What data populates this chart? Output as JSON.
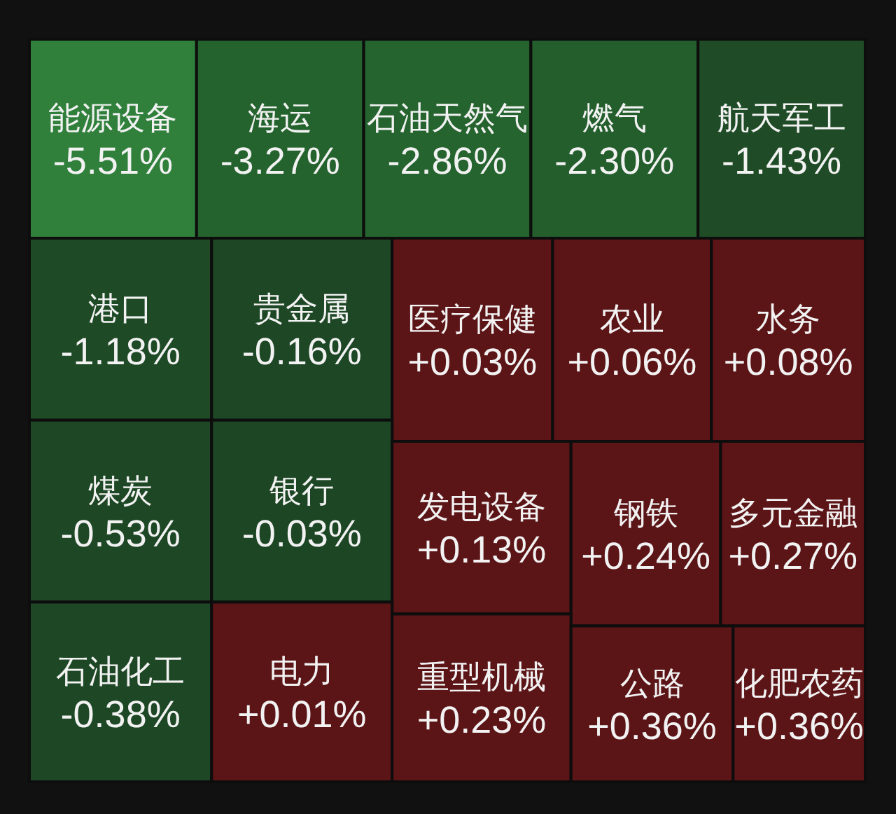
{
  "chart_data": {
    "type": "other",
    "categories": [
      "能源设备",
      "海运",
      "石油天然气",
      "燃气",
      "航天军工",
      "港口",
      "贵金属",
      "医疗保健",
      "农业",
      "水务",
      "煤炭",
      "银行",
      "发电设备",
      "钢铁",
      "多元金融",
      "石油化工",
      "电力",
      "重型机械",
      "公路",
      "化肥农药"
    ],
    "values": [
      -5.51,
      -3.27,
      -2.86,
      -2.3,
      -1.43,
      -1.18,
      -0.16,
      0.03,
      0.06,
      0.08,
      -0.53,
      -0.03,
      0.13,
      0.24,
      0.27,
      -0.38,
      0.01,
      0.23,
      0.36,
      0.36
    ],
    "value_labels": [
      "-5.51%",
      "-3.27%",
      "-2.86%",
      "-2.30%",
      "-1.43%",
      "-1.18%",
      "-0.16%",
      "+0.03%",
      "+0.06%",
      "+0.08%",
      "-0.53%",
      "-0.03%",
      "+0.13%",
      "+0.24%",
      "+0.27%",
      "-0.38%",
      "+0.01%",
      "+0.23%",
      "+0.36%",
      "+0.36%"
    ],
    "colors": [
      "#30803c",
      "#25632e",
      "#25642f",
      "#245e2d",
      "#1f4c26",
      "#1e4a25",
      "#1d4725",
      "#5c1517",
      "#5c1517",
      "#5c1517",
      "#1e4825",
      "#1d4624",
      "#5c1517",
      "#5c1517",
      "#5c1517",
      "#1e4825",
      "#5c1517",
      "#5c1517",
      "#5c1517",
      "#5c1517"
    ]
  }
}
